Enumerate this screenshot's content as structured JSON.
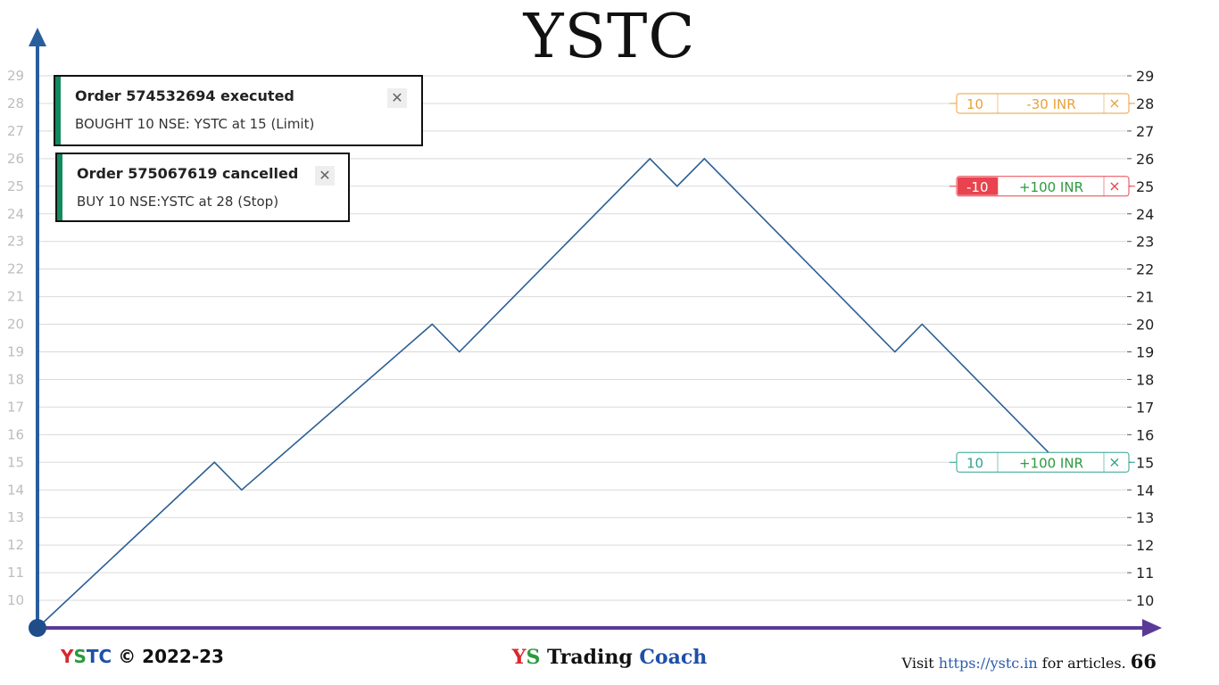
{
  "title": "YSTC",
  "toasts": [
    {
      "title": "Order 574532694 executed",
      "body": "BOUGHT 10 NSE: YSTC at 15  (Limit)",
      "close": "✕"
    },
    {
      "title": "Order 575067619 cancelled",
      "body": "BUY 10 NSE:YSTC at 28 (Stop)",
      "close": "✕"
    }
  ],
  "order_tags": [
    {
      "qty": "10",
      "pnl": "-30  INR",
      "close": "×",
      "price": 28,
      "color": "#e8a23a",
      "qty_bg": "#ffffff",
      "qty_color": "#e8a23a",
      "pnl_color": "#e8a23a"
    },
    {
      "qty": "-10",
      "pnl": "+100  INR",
      "close": "×",
      "price": 25,
      "color": "#e8434f",
      "qty_bg": "#e8434f",
      "qty_color": "#ffffff",
      "pnl_color": "#2b9a3e"
    },
    {
      "qty": "10",
      "pnl": "+100  INR",
      "close": "×",
      "price": 15,
      "color": "#2ea38f",
      "qty_bg": "#ffffff",
      "qty_color": "#2ea38f",
      "pnl_color": "#2b9a3e"
    }
  ],
  "chart_data": {
    "type": "line",
    "title": "YSTC",
    "ylim": [
      9,
      29
    ],
    "yticks": [
      10,
      11,
      12,
      13,
      14,
      15,
      16,
      17,
      18,
      19,
      20,
      21,
      22,
      23,
      24,
      25,
      26,
      27,
      28,
      29
    ],
    "grid": true,
    "series": [
      {
        "color": "#2d5f94",
        "points": [
          [
            0,
            9
          ],
          [
            6.5,
            15
          ],
          [
            7.5,
            14
          ],
          [
            14.5,
            20
          ],
          [
            15.5,
            19
          ],
          [
            22.5,
            26
          ],
          [
            23.5,
            25
          ],
          [
            24.5,
            26
          ],
          [
            31.5,
            19
          ],
          [
            32.5,
            20
          ],
          [
            37.5,
            15
          ]
        ]
      }
    ],
    "xlim": [
      0,
      40
    ]
  },
  "footer": {
    "left_y": "Y",
    "left_s": "S",
    "left_t": "T",
    "left_c": "C",
    "left_rest": " © 2022-23",
    "mid_y": "Y",
    "mid_s": "S",
    "mid_trading": " Trading ",
    "mid_coach": "Coach",
    "right_prefix": "Visit ",
    "right_url": "https://ystc.in",
    "right_suffix": " for articles. ",
    "page": "66"
  }
}
